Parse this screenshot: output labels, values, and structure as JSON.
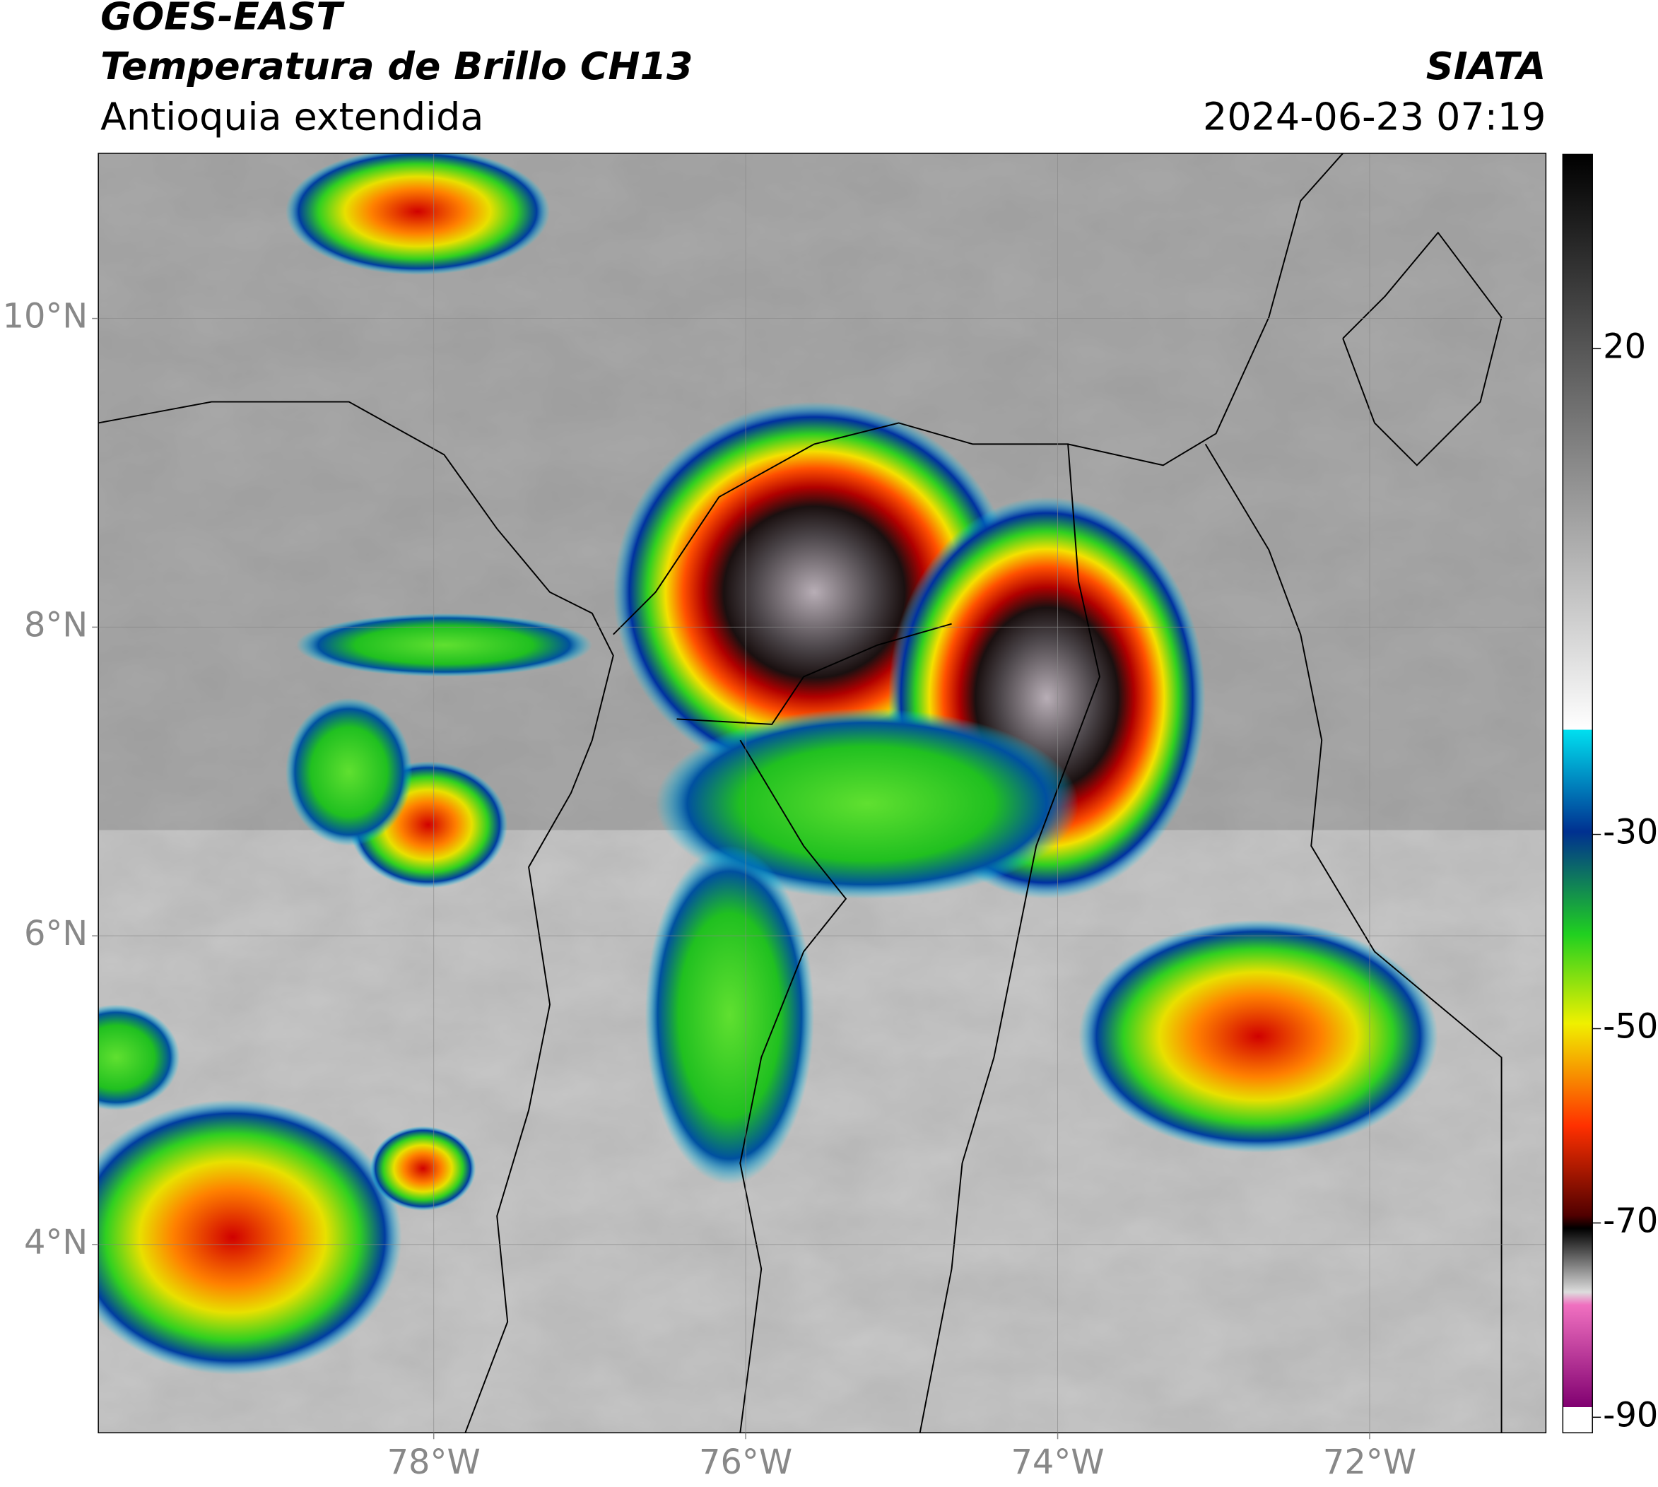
{
  "header": {
    "title": "GOES-EAST",
    "subtitle": "Temperatura de Brillo CH13",
    "region": "Antioquia extendida",
    "source": "SIATA",
    "datetime": "2024-06-23 07:19"
  },
  "map": {
    "xlim": [
      -80.15,
      -70.87
    ],
    "ylim": [
      2.78,
      11.07
    ],
    "xticks": [
      {
        "value": -78,
        "label": "78°W"
      },
      {
        "value": -76,
        "label": "76°W"
      },
      {
        "value": -74,
        "label": "74°W"
      },
      {
        "value": -72,
        "label": "72°W"
      }
    ],
    "yticks": [
      {
        "value": 10,
        "label": "10°N"
      },
      {
        "value": 8,
        "label": "8°N"
      },
      {
        "value": 6,
        "label": "6°N"
      },
      {
        "value": 4,
        "label": "4°N"
      }
    ],
    "grid": true
  },
  "colorbar": {
    "lim": [
      40,
      -91.6
    ],
    "ticks": [
      20,
      -30,
      -50,
      -70,
      -90
    ]
  }
}
